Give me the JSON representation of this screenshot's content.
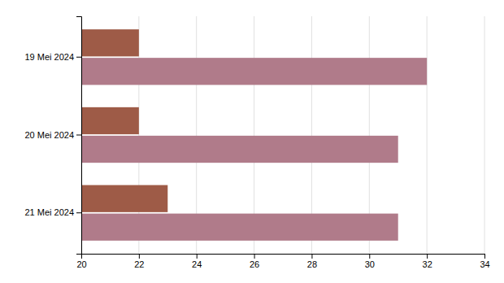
{
  "chart_data": {
    "type": "bar",
    "orientation": "horizontal",
    "categories": [
      "19 Mei 2024",
      "20 Mei 2024",
      "21 Mei 2024"
    ],
    "series": [
      {
        "color": "#9e5b47",
        "values": [
          22,
          22,
          23
        ]
      },
      {
        "color": "#b07b8a",
        "values": [
          32,
          31,
          31
        ]
      }
    ],
    "xlim": [
      20,
      34
    ],
    "xticks": [
      20,
      22,
      24,
      26,
      28,
      30,
      32,
      34
    ],
    "grid": true
  }
}
